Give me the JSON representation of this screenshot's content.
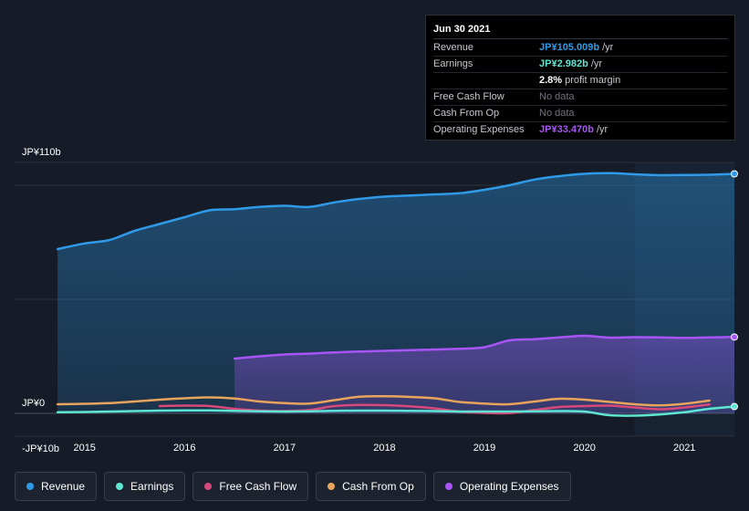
{
  "tooltip": {
    "date": "Jun 30 2021",
    "rows": [
      {
        "label": "Revenue",
        "value": "JP¥105.009b",
        "unit": "/yr",
        "color": "#2f9ae8"
      },
      {
        "label": "Earnings",
        "value": "JP¥2.982b",
        "unit": "/yr",
        "color": "#5ee6d3"
      },
      {
        "label": "",
        "value": "2.8%",
        "unit": "profit margin",
        "color": "#ffffff"
      },
      {
        "label": "Free Cash Flow",
        "nodata": "No data"
      },
      {
        "label": "Cash From Op",
        "nodata": "No data"
      },
      {
        "label": "Operating Expenses",
        "value": "JP¥33.470b",
        "unit": "/yr",
        "color": "#a855f7"
      }
    ]
  },
  "legend": [
    {
      "label": "Revenue",
      "color": "#2f9ae8"
    },
    {
      "label": "Earnings",
      "color": "#5ee6d3"
    },
    {
      "label": "Free Cash Flow",
      "color": "#d6497a"
    },
    {
      "label": "Cash From Op",
      "color": "#e8a45c"
    },
    {
      "label": "Operating Expenses",
      "color": "#a855f7"
    }
  ],
  "chart_data": {
    "type": "line",
    "title": "",
    "xlabel": "",
    "ylabel": "",
    "y_tick_labels": [
      {
        "value": 110,
        "label": "JP¥110b"
      },
      {
        "value": 0,
        "label": "JP¥0"
      },
      {
        "value": -10,
        "label": "-JP¥10b"
      }
    ],
    "x_tick_labels": [
      "2015",
      "2016",
      "2017",
      "2018",
      "2019",
      "2020",
      "2021"
    ],
    "ylim": [
      -10,
      110
    ],
    "xlim": [
      2014.3,
      2021.5
    ],
    "highlight_from": 2020.5,
    "series": [
      {
        "name": "Revenue",
        "color": "#2f9ae8",
        "fill": true,
        "end_marker": true,
        "x": [
          2014.73,
          2015.0,
          2015.25,
          2015.5,
          2015.75,
          2016.0,
          2016.25,
          2016.5,
          2016.75,
          2017.0,
          2017.25,
          2017.5,
          2017.75,
          2018.0,
          2018.25,
          2018.5,
          2018.75,
          2019.0,
          2019.25,
          2019.5,
          2019.75,
          2020.0,
          2020.25,
          2020.5,
          2020.75,
          2021.0,
          2021.25,
          2021.5
        ],
        "y": [
          72,
          74.5,
          76,
          80,
          83,
          86,
          89,
          89.5,
          90.5,
          91,
          90.5,
          92.5,
          94,
          95,
          95.5,
          96,
          96.5,
          98,
          100,
          102.5,
          104,
          105,
          105.3,
          104.8,
          104.4,
          104.5,
          104.6,
          105.0
        ]
      },
      {
        "name": "Operating Expenses",
        "color": "#a855f7",
        "fill": true,
        "end_marker": true,
        "x": [
          2016.5,
          2016.75,
          2017.0,
          2017.25,
          2017.5,
          2017.75,
          2018.0,
          2018.25,
          2018.5,
          2018.75,
          2019.0,
          2019.25,
          2019.5,
          2019.75,
          2020.0,
          2020.25,
          2020.5,
          2020.75,
          2021.0,
          2021.25,
          2021.5
        ],
        "y": [
          24,
          25,
          25.8,
          26.2,
          26.7,
          27.1,
          27.4,
          27.7,
          28.0,
          28.3,
          29,
          32,
          32.5,
          33.3,
          34.0,
          33.2,
          33.4,
          33.3,
          33.1,
          33.3,
          33.47
        ]
      },
      {
        "name": "Cash From Op",
        "color": "#e8a45c",
        "fill": false,
        "end_marker": false,
        "x": [
          2014.73,
          2015.0,
          2015.25,
          2015.5,
          2015.75,
          2016.0,
          2016.25,
          2016.5,
          2016.75,
          2017.0,
          2017.25,
          2017.5,
          2017.75,
          2018.0,
          2018.25,
          2018.5,
          2018.75,
          2019.0,
          2019.25,
          2019.5,
          2019.75,
          2020.0,
          2020.25,
          2020.5,
          2020.75,
          2021.0,
          2021.25
        ],
        "y": [
          4,
          4.2,
          4.5,
          5.2,
          6,
          6.6,
          7,
          6.5,
          5.2,
          4.5,
          4.3,
          5.8,
          7.3,
          7.5,
          7.2,
          6.6,
          5,
          4.3,
          4.0,
          5.2,
          6.4,
          6.0,
          5.0,
          4.0,
          3.5,
          4.2,
          5.6
        ]
      },
      {
        "name": "Free Cash Flow",
        "color": "#d6497a",
        "fill": false,
        "end_marker": false,
        "x": [
          2015.75,
          2016.0,
          2016.25,
          2016.5,
          2016.75,
          2017.0,
          2017.25,
          2017.5,
          2017.75,
          2018.0,
          2018.25,
          2018.5,
          2018.75,
          2019.0,
          2019.25,
          2019.5,
          2019.75,
          2020.0,
          2020.25,
          2020.5,
          2020.75,
          2021.0,
          2021.25
        ],
        "y": [
          3.2,
          3.4,
          3.2,
          2.0,
          1.2,
          1.0,
          1.5,
          3.2,
          3.7,
          3.6,
          3.1,
          2.2,
          0.8,
          0.2,
          0.1,
          1.5,
          2.8,
          3.2,
          3.4,
          2.6,
          1.8,
          2.6,
          3.9
        ]
      },
      {
        "name": "Earnings",
        "color": "#5ee6d3",
        "fill": false,
        "end_marker": true,
        "x": [
          2014.73,
          2015.0,
          2015.25,
          2015.5,
          2015.75,
          2016.0,
          2016.25,
          2016.5,
          2016.75,
          2017.0,
          2017.25,
          2017.5,
          2017.75,
          2018.0,
          2018.25,
          2018.5,
          2018.75,
          2019.0,
          2019.25,
          2019.5,
          2019.75,
          2020.0,
          2020.25,
          2020.5,
          2020.75,
          2021.0,
          2021.25,
          2021.5
        ],
        "y": [
          0.5,
          0.6,
          0.8,
          1.0,
          1.2,
          1.3,
          1.3,
          1.1,
          0.9,
          0.8,
          0.9,
          1.1,
          1.2,
          1.2,
          1.1,
          1.0,
          0.8,
          0.8,
          0.8,
          0.9,
          1.0,
          0.8,
          -0.8,
          -1.0,
          -0.5,
          0.5,
          2.0,
          2.98
        ]
      }
    ]
  }
}
